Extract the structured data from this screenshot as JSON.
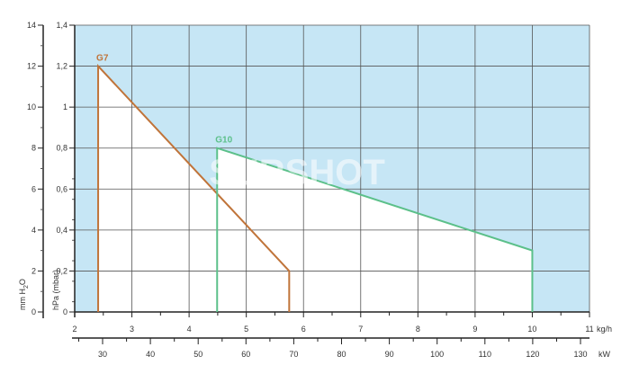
{
  "chart_data": {
    "type": "area",
    "x_primary": {
      "label": "kg/h",
      "range": [
        2,
        11
      ],
      "ticks": [
        "2",
        "3",
        "4",
        "5",
        "6",
        "7",
        "8",
        "9",
        "10",
        "11"
      ]
    },
    "x_secondary": {
      "label": "kW",
      "ticks": [
        "30",
        "40",
        "50",
        "60",
        "70",
        "80",
        "90",
        "100",
        "110",
        "120",
        "130"
      ]
    },
    "y_primary": {
      "label": "hPa (mbar)",
      "range": [
        0,
        1.4
      ],
      "ticks": [
        "0",
        "0,2",
        "0,4",
        "0,6",
        "0,8",
        "1",
        "1,2",
        "1,4"
      ]
    },
    "y_secondary": {
      "label": "mm H2O",
      "label_main": "mm H",
      "label_sub": "2",
      "label_end": "O",
      "ticks": [
        "0",
        "2",
        "4",
        "6",
        "8",
        "10",
        "12",
        "14"
      ]
    },
    "grid": true,
    "series": [
      {
        "name": "G7",
        "color": "#c0743a",
        "points": [
          [
            2.41,
            0
          ],
          [
            2.41,
            1.2
          ],
          [
            5.75,
            0.2
          ],
          [
            5.75,
            0
          ]
        ]
      },
      {
        "name": "G10",
        "color": "#5cc08a",
        "points": [
          [
            4.49,
            0
          ],
          [
            4.49,
            0.8
          ],
          [
            10.0,
            0.3
          ],
          [
            10.0,
            0
          ]
        ]
      }
    ],
    "background_color": "#c6e6f5"
  },
  "watermark": "SURSHOT"
}
